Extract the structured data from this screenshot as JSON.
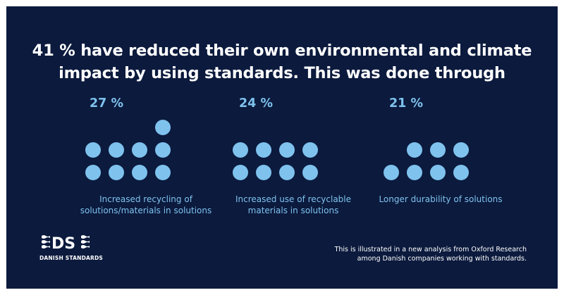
{
  "title": {
    "line1": "41 % have reduced their own environmental and climate",
    "line2": "impact by using standards. This was done through"
  },
  "chart_data": {
    "type": "pictogram",
    "dot_color": "#7fc2ee",
    "background_color": "#0b1a3d",
    "items": [
      {
        "percent_label": "27 %",
        "value": 27,
        "caption_line1": "Increased recycling of",
        "caption_line2": "solutions/materials in solutions"
      },
      {
        "percent_label": "24 %",
        "value": 24,
        "caption_line1": "Increased use of recyclable",
        "caption_line2": "materials in solutions"
      },
      {
        "percent_label": "21 %",
        "value": 21,
        "caption_line1": "Longer durability of solutions",
        "caption_line2": ""
      }
    ]
  },
  "logo": {
    "mark": "DS",
    "name": "DANISH STANDARDS"
  },
  "footnote": {
    "line1": "This is illustrated in a new analysis from Oxford Research",
    "line2": "among Danish companies working with standards."
  }
}
